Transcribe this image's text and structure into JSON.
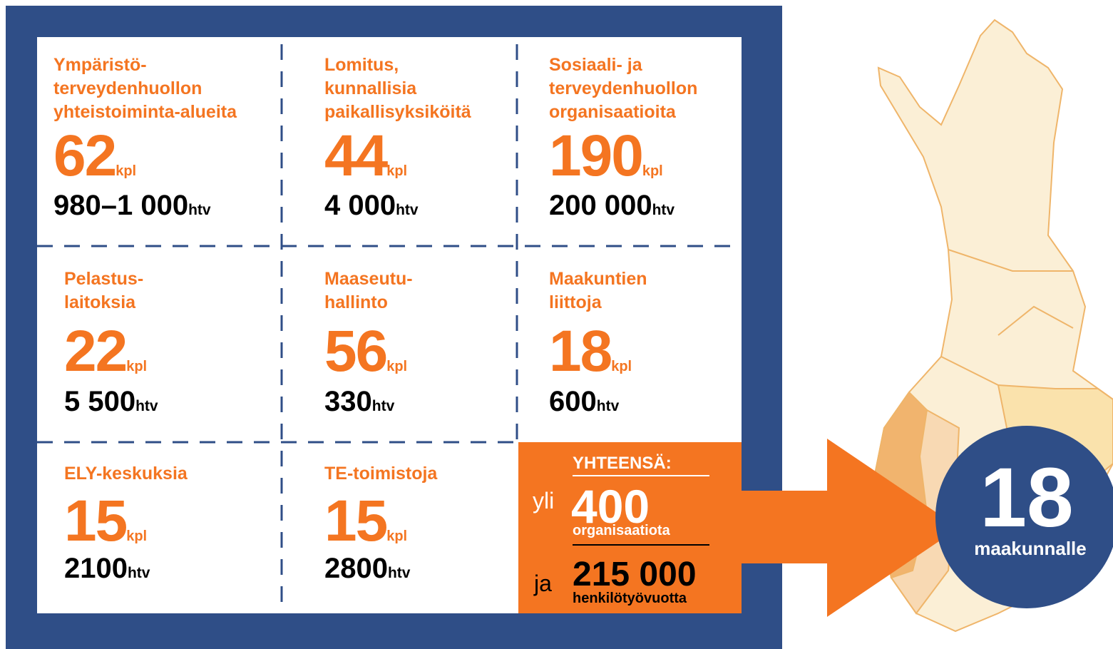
{
  "cells": [
    {
      "label": [
        "Ympäristö-",
        "terveydenhuollon",
        "yhteistoiminta-alueita"
      ],
      "number": "62",
      "unit": "kpl",
      "htv": "980–1 000",
      "htv_unit": "htv"
    },
    {
      "label": [
        "Lomitus,",
        "kunnallisia",
        "paikallisyksiköitä"
      ],
      "number": "44",
      "unit": "kpl",
      "htv": "4 000",
      "htv_unit": "htv"
    },
    {
      "label": [
        "Sosiaali- ja",
        "terveydenhuollon",
        "organisaatioita"
      ],
      "number": "190",
      "unit": "kpl",
      "htv": "200 000",
      "htv_unit": "htv"
    },
    {
      "label": [
        "Pelastus-",
        "laitoksia"
      ],
      "number": "22",
      "unit": "kpl",
      "htv": "5 500",
      "htv_unit": "htv"
    },
    {
      "label": [
        "Maaseutu-",
        "hallinto"
      ],
      "number": "56",
      "unit": "kpl",
      "htv": "330",
      "htv_unit": "htv"
    },
    {
      "label": [
        "Maakuntien",
        "liittoja"
      ],
      "number": "18",
      "unit": "kpl",
      "htv": "600",
      "htv_unit": "htv"
    },
    {
      "label": [
        "ELY-keskuksia"
      ],
      "number": "15",
      "unit": "kpl",
      "htv": "2100",
      "htv_unit": "htv"
    },
    {
      "label": [
        "TE-toimistoja"
      ],
      "number": "15",
      "unit": "kpl",
      "htv": "2800",
      "htv_unit": "htv"
    }
  ],
  "total": {
    "heading": "YHTEENSÄ:",
    "prefix1": "yli",
    "organisations": "400",
    "organisations_label": "organisaatiota",
    "prefix2": "ja",
    "person_years": "215 000",
    "person_years_label": "henkilötyövuotta"
  },
  "result": {
    "number": "18",
    "label": "maakunnalle"
  }
}
